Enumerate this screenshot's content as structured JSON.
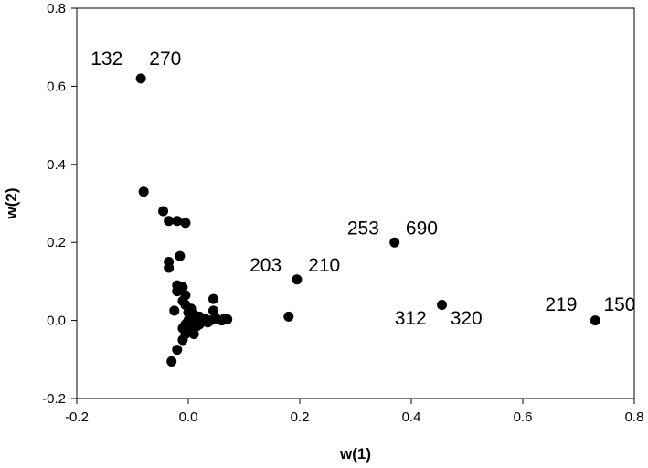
{
  "chart_data": {
    "type": "scatter",
    "title": "",
    "xlabel": "w(1)",
    "ylabel": "w(2)",
    "xlim": [
      -0.2,
      0.8
    ],
    "ylim": [
      -0.2,
      0.8
    ],
    "x_ticks": [
      "-0.2",
      "0.0",
      "0.2",
      "0.4",
      "0.6",
      "0.8"
    ],
    "y_ticks": [
      "-0.2",
      "0.0",
      "0.2",
      "0.4",
      "0.6",
      "0.8"
    ],
    "grid": false,
    "legend": "none",
    "marker_color": "#000000",
    "points": [
      {
        "x": -0.085,
        "y": 0.62
      },
      {
        "x": -0.08,
        "y": 0.33
      },
      {
        "x": -0.045,
        "y": 0.28
      },
      {
        "x": -0.035,
        "y": 0.255
      },
      {
        "x": -0.02,
        "y": 0.255
      },
      {
        "x": -0.005,
        "y": 0.25
      },
      {
        "x": -0.015,
        "y": 0.165
      },
      {
        "x": -0.035,
        "y": 0.15
      },
      {
        "x": -0.035,
        "y": 0.135
      },
      {
        "x": -0.02,
        "y": 0.09
      },
      {
        "x": -0.02,
        "y": 0.075
      },
      {
        "x": -0.01,
        "y": 0.085
      },
      {
        "x": -0.005,
        "y": 0.065
      },
      {
        "x": -0.01,
        "y": 0.05
      },
      {
        "x": -0.005,
        "y": 0.04
      },
      {
        "x": 0.005,
        "y": 0.03
      },
      {
        "x": -0.025,
        "y": 0.025
      },
      {
        "x": 0.0,
        "y": 0.02
      },
      {
        "x": 0.01,
        "y": 0.015
      },
      {
        "x": 0.02,
        "y": 0.01
      },
      {
        "x": 0.03,
        "y": 0.005
      },
      {
        "x": 0.04,
        "y": 0.0
      },
      {
        "x": 0.05,
        "y": 0.005
      },
      {
        "x": 0.06,
        "y": 0.0
      },
      {
        "x": 0.065,
        "y": 0.005
      },
      {
        "x": 0.07,
        "y": 0.003
      },
      {
        "x": 0.045,
        "y": 0.055
      },
      {
        "x": 0.045,
        "y": 0.025
      },
      {
        "x": 0.035,
        "y": -0.005
      },
      {
        "x": 0.02,
        "y": -0.01
      },
      {
        "x": 0.01,
        "y": -0.005
      },
      {
        "x": 0.0,
        "y": 0.0
      },
      {
        "x": -0.005,
        "y": -0.01
      },
      {
        "x": -0.01,
        "y": -0.02
      },
      {
        "x": -0.005,
        "y": -0.035
      },
      {
        "x": -0.01,
        "y": -0.05
      },
      {
        "x": 0.005,
        "y": -0.025
      },
      {
        "x": 0.01,
        "y": -0.035
      },
      {
        "x": 0.015,
        "y": -0.015
      },
      {
        "x": 0.025,
        "y": 0.0
      },
      {
        "x": -0.02,
        "y": -0.075
      },
      {
        "x": -0.03,
        "y": -0.105
      },
      {
        "x": 0.18,
        "y": 0.01
      },
      {
        "x": 0.195,
        "y": 0.105
      },
      {
        "x": 0.37,
        "y": 0.2
      },
      {
        "x": 0.455,
        "y": 0.04
      },
      {
        "x": 0.73,
        "y": 0.0
      }
    ],
    "annotations": [
      {
        "text": "132",
        "x": -0.175,
        "y": 0.655
      },
      {
        "text": "270",
        "x": -0.07,
        "y": 0.655
      },
      {
        "text": "253",
        "x": 0.285,
        "y": 0.22
      },
      {
        "text": "690",
        "x": 0.39,
        "y": 0.22
      },
      {
        "text": "203",
        "x": 0.11,
        "y": 0.125
      },
      {
        "text": "210",
        "x": 0.215,
        "y": 0.125
      },
      {
        "text": "312",
        "x": 0.37,
        "y": -0.01
      },
      {
        "text": "320",
        "x": 0.47,
        "y": -0.01
      },
      {
        "text": "219",
        "x": 0.64,
        "y": 0.025
      },
      {
        "text": "150",
        "x": 0.745,
        "y": 0.025
      }
    ]
  }
}
